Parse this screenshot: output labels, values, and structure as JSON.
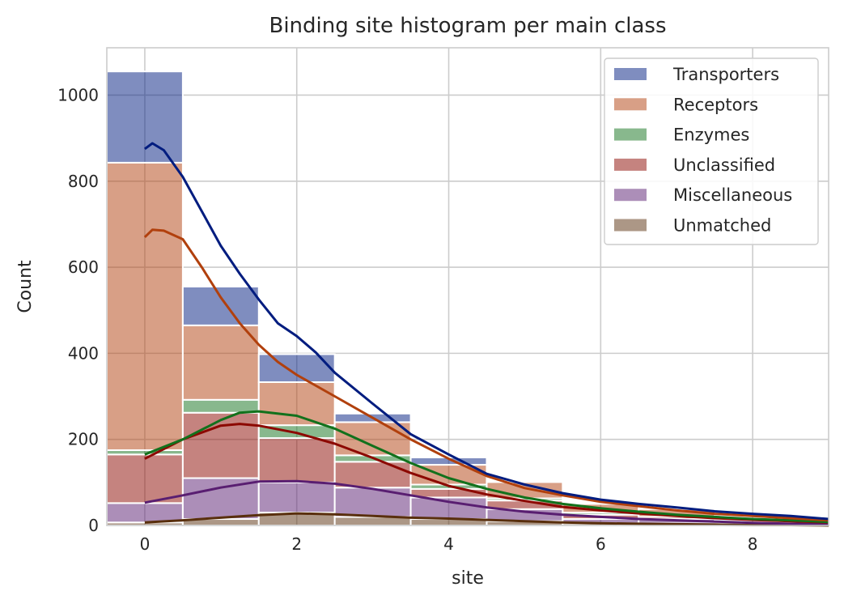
{
  "chart_data": {
    "type": "bar",
    "title": "Binding site histogram per main class",
    "xlabel": "site",
    "ylabel": "Count",
    "xlim": [
      -0.5,
      9.0
    ],
    "ylim": [
      0,
      1110
    ],
    "x_ticks": [
      "0",
      "2",
      "4",
      "6",
      "8"
    ],
    "y_ticks": [
      "0",
      "200",
      "400",
      "600",
      "800",
      "1000"
    ],
    "stacked": true,
    "grid": true,
    "legend_position": "top-right",
    "categories": [
      0,
      1,
      2,
      3,
      4,
      5,
      6,
      7,
      8
    ],
    "series": [
      {
        "name": "Transporters",
        "color": "#001c7f",
        "values": [
          212,
          90,
          65,
          20,
          17,
          3,
          0,
          0,
          0
        ],
        "kde": [
          [
            0,
            875
          ],
          [
            0.1,
            888
          ],
          [
            0.25,
            872
          ],
          [
            0.5,
            810
          ],
          [
            0.75,
            730
          ],
          [
            1.0,
            650
          ],
          [
            1.25,
            585
          ],
          [
            1.5,
            525
          ],
          [
            1.75,
            470
          ],
          [
            2.0,
            440
          ],
          [
            2.25,
            402
          ],
          [
            2.5,
            355
          ],
          [
            3.0,
            283
          ],
          [
            3.5,
            212
          ],
          [
            4.0,
            165
          ],
          [
            4.5,
            120
          ],
          [
            5.0,
            95
          ],
          [
            5.5,
            75
          ],
          [
            6.0,
            60
          ],
          [
            6.5,
            50
          ],
          [
            7.0,
            42
          ],
          [
            7.5,
            33
          ],
          [
            8.0,
            27
          ],
          [
            8.5,
            22
          ],
          [
            9.0,
            15
          ]
        ]
      },
      {
        "name": "Receptors",
        "color": "#b1400d",
        "values": [
          668,
          173,
          100,
          77,
          46,
          38,
          20,
          18,
          0
        ],
        "kde": [
          [
            0,
            670
          ],
          [
            0.1,
            687
          ],
          [
            0.25,
            685
          ],
          [
            0.5,
            665
          ],
          [
            0.75,
            600
          ],
          [
            1.0,
            530
          ],
          [
            1.25,
            470
          ],
          [
            1.5,
            420
          ],
          [
            1.75,
            380
          ],
          [
            2.0,
            350
          ],
          [
            2.5,
            300
          ],
          [
            3.0,
            250
          ],
          [
            3.5,
            200
          ],
          [
            4.0,
            155
          ],
          [
            4.5,
            115
          ],
          [
            5.0,
            87
          ],
          [
            5.5,
            70
          ],
          [
            6.0,
            55
          ],
          [
            6.5,
            45
          ],
          [
            7.0,
            35
          ],
          [
            7.5,
            27
          ],
          [
            8.0,
            22
          ],
          [
            8.5,
            17
          ],
          [
            9.0,
            12
          ]
        ]
      },
      {
        "name": "Enzymes",
        "color": "#12711c",
        "values": [
          10,
          30,
          30,
          15,
          10,
          5,
          5,
          0,
          0
        ],
        "kde": [
          [
            0,
            165
          ],
          [
            0.5,
            200
          ],
          [
            1.0,
            245
          ],
          [
            1.25,
            262
          ],
          [
            1.5,
            265
          ],
          [
            2.0,
            255
          ],
          [
            2.5,
            225
          ],
          [
            3.0,
            185
          ],
          [
            3.5,
            145
          ],
          [
            4.0,
            110
          ],
          [
            4.5,
            85
          ],
          [
            5.0,
            65
          ],
          [
            5.5,
            50
          ],
          [
            6.0,
            40
          ],
          [
            6.5,
            32
          ],
          [
            7.0,
            25
          ],
          [
            7.5,
            20
          ],
          [
            8.0,
            15
          ],
          [
            8.5,
            12
          ],
          [
            9.0,
            8
          ]
        ]
      },
      {
        "name": "Unclassified",
        "color": "#8c0800",
        "values": [
          113,
          152,
          103,
          60,
          20,
          20,
          10,
          5,
          2
        ],
        "kde": [
          [
            0,
            155
          ],
          [
            0.5,
            200
          ],
          [
            1.0,
            232
          ],
          [
            1.25,
            236
          ],
          [
            1.5,
            232
          ],
          [
            2.0,
            215
          ],
          [
            2.5,
            190
          ],
          [
            3.0,
            157
          ],
          [
            3.5,
            122
          ],
          [
            4.0,
            92
          ],
          [
            4.5,
            72
          ],
          [
            5.0,
            57
          ],
          [
            5.5,
            43
          ],
          [
            6.0,
            35
          ],
          [
            6.5,
            28
          ],
          [
            7.0,
            22
          ],
          [
            7.5,
            17
          ],
          [
            8.0,
            13
          ],
          [
            8.5,
            10
          ],
          [
            9.0,
            7
          ]
        ]
      },
      {
        "name": "Miscellaneous",
        "color": "#591e71",
        "values": [
          45,
          95,
          70,
          68,
          50,
          28,
          10,
          10,
          3
        ],
        "kde": [
          [
            0,
            53
          ],
          [
            0.5,
            70
          ],
          [
            1.0,
            88
          ],
          [
            1.5,
            102
          ],
          [
            2.0,
            103
          ],
          [
            2.5,
            97
          ],
          [
            3.0,
            85
          ],
          [
            3.5,
            70
          ],
          [
            4.0,
            55
          ],
          [
            4.5,
            42
          ],
          [
            5.0,
            32
          ],
          [
            5.5,
            25
          ],
          [
            6.0,
            20
          ],
          [
            6.5,
            15
          ],
          [
            7.0,
            12
          ],
          [
            7.5,
            9
          ],
          [
            8.0,
            6
          ],
          [
            8.5,
            4
          ],
          [
            9.0,
            3
          ]
        ]
      },
      {
        "name": "Unmatched",
        "color": "#592f0d",
        "values": [
          7,
          15,
          30,
          20,
          15,
          10,
          5,
          5,
          0
        ],
        "kde": [
          [
            0,
            7
          ],
          [
            0.5,
            12
          ],
          [
            1.0,
            18
          ],
          [
            1.5,
            24
          ],
          [
            2.0,
            28
          ],
          [
            2.5,
            26
          ],
          [
            3.0,
            22
          ],
          [
            3.5,
            18
          ],
          [
            4.0,
            16
          ],
          [
            4.5,
            13
          ],
          [
            5.0,
            10
          ],
          [
            5.5,
            7
          ],
          [
            6.0,
            5
          ],
          [
            6.5,
            4
          ],
          [
            7.0,
            3
          ],
          [
            7.5,
            2
          ],
          [
            8.0,
            1
          ],
          [
            8.5,
            1
          ],
          [
            9.0,
            0
          ]
        ]
      }
    ]
  }
}
